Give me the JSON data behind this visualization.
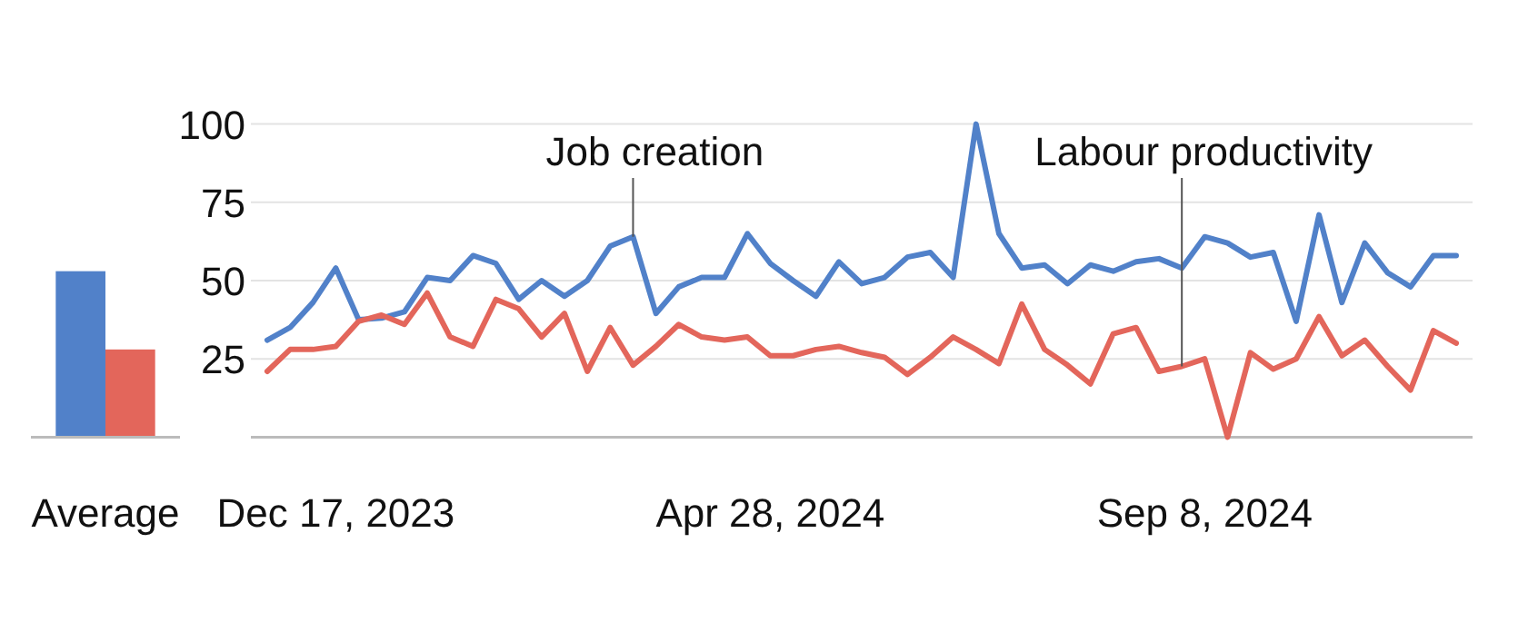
{
  "chart_data": [
    {
      "type": "bar",
      "categories": [
        "Average"
      ],
      "ylim": [
        0,
        100
      ],
      "tick_labels": "x",
      "series": [
        {
          "color": "#5181c9",
          "values": [
            53
          ]
        },
        {
          "color": "#e3665b",
          "values": [
            28
          ]
        }
      ]
    },
    {
      "type": "line",
      "grid": "y",
      "marker": "none",
      "line_style": "solid",
      "x": [
        "2023-11-26",
        "2023-12-03",
        "2023-12-10",
        "2023-12-17",
        "2023-12-24",
        "2023-12-31",
        "2024-01-07",
        "2024-01-14",
        "2024-01-21",
        "2024-01-28",
        "2024-02-04",
        "2024-02-11",
        "2024-02-18",
        "2024-02-25",
        "2024-03-03",
        "2024-03-10",
        "2024-03-17",
        "2024-03-24",
        "2024-03-31",
        "2024-04-07",
        "2024-04-14",
        "2024-04-21",
        "2024-04-28",
        "2024-05-05",
        "2024-05-12",
        "2024-05-19",
        "2024-05-26",
        "2024-06-02",
        "2024-06-09",
        "2024-06-16",
        "2024-06-23",
        "2024-06-30",
        "2024-07-07",
        "2024-07-14",
        "2024-07-21",
        "2024-07-28",
        "2024-08-04",
        "2024-08-11",
        "2024-08-18",
        "2024-08-25",
        "2024-09-01",
        "2024-09-08",
        "2024-09-15",
        "2024-09-22",
        "2024-09-29",
        "2024-10-06",
        "2024-10-13",
        "2024-10-20",
        "2024-10-27",
        "2024-11-03",
        "2024-11-10",
        "2024-11-17",
        "2024-11-24"
      ],
      "xlim": [
        "2023-11-21",
        "2024-11-29"
      ],
      "xticks": [
        {
          "value": "2023-12-17",
          "label": "Dec 17, 2023"
        },
        {
          "value": "2024-04-28",
          "label": "Apr 28, 2024"
        },
        {
          "value": "2024-09-08",
          "label": "Sep 8, 2024"
        }
      ],
      "ylim": [
        0,
        100
      ],
      "yticks": [
        25,
        50,
        75,
        100
      ],
      "series": [
        {
          "color": "#5181c9",
          "values": [
            31,
            35,
            43,
            54,
            37.5,
            38,
            40,
            51,
            50,
            58,
            55.5,
            44,
            50,
            45,
            50,
            61,
            64,
            39.5,
            48,
            51,
            51,
            65,
            55.5,
            50,
            45,
            56,
            49,
            51,
            57.5,
            59,
            51,
            100,
            65,
            54,
            55,
            49,
            55,
            53,
            56,
            57,
            54,
            64,
            62,
            57.5,
            59,
            37,
            71,
            43,
            62,
            52.5,
            48,
            58,
            58
          ]
        },
        {
          "color": "#e3665b",
          "values": [
            21,
            28,
            28,
            29,
            37,
            39,
            36,
            46,
            32,
            29,
            44,
            41,
            32,
            39.5,
            21,
            35,
            23,
            29,
            36,
            32,
            31,
            32,
            26,
            26,
            28,
            29,
            27,
            25.5,
            20,
            25.5,
            32,
            28,
            23.5,
            42.5,
            28,
            23,
            17,
            33,
            35,
            21,
            22.6,
            25,
            0,
            27,
            21.7,
            25,
            38.5,
            26,
            31,
            22.6,
            15,
            34,
            30
          ]
        }
      ],
      "annotations": [
        {
          "text": "Job creation",
          "x": "2024-03-17",
          "y": 64
        },
        {
          "text": "Labour productivity",
          "x": "2024-09-01",
          "y": 22.6
        }
      ]
    }
  ]
}
